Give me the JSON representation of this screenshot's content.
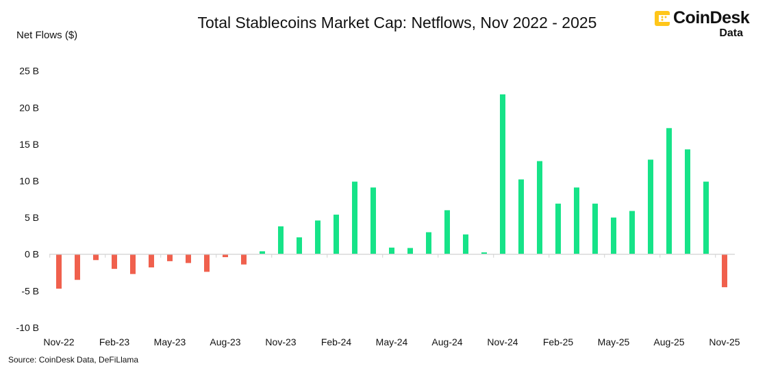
{
  "chart_data": {
    "type": "bar",
    "title": "Total Stablecoins Market Cap: Netflows, Nov 2022 - 2025",
    "ylabel": "Net Flows ($)",
    "xlabel": "",
    "ylim": [
      -10,
      25
    ],
    "yticks": [
      25,
      20,
      15,
      10,
      5,
      0,
      -5,
      -10
    ],
    "ytick_labels": [
      "25 B",
      "20 B",
      "15 B",
      "10 B",
      "5 B",
      "0 B",
      "-5 B",
      "-10 B"
    ],
    "unit": "B",
    "categories": [
      "Nov-22",
      "Dec-22",
      "Jan-23",
      "Feb-23",
      "Mar-23",
      "Apr-23",
      "May-23",
      "Jun-23",
      "Jul-23",
      "Aug-23",
      "Sep-23",
      "Oct-23",
      "Nov-23",
      "Dec-23",
      "Jan-24",
      "Feb-24",
      "Mar-24",
      "Apr-24",
      "May-24",
      "Jun-24",
      "Jul-24",
      "Aug-24",
      "Sep-24",
      "Oct-24",
      "Nov-24",
      "Dec-24",
      "Jan-25",
      "Feb-25",
      "Mar-25",
      "Apr-25",
      "May-25",
      "Jun-25",
      "Jul-25",
      "Aug-25",
      "Sep-25",
      "Oct-25",
      "Nov-25"
    ],
    "xtick_labels": [
      "Nov-22",
      "Feb-23",
      "May-23",
      "Aug-23",
      "Nov-23",
      "Feb-24",
      "May-24",
      "Aug-24",
      "Nov-24",
      "Feb-25",
      "May-25",
      "Aug-25",
      "Nov-25"
    ],
    "values": [
      -4.7,
      -3.5,
      -0.8,
      -2.0,
      -2.7,
      -1.8,
      -0.95,
      -1.2,
      -2.4,
      -0.4,
      -1.4,
      0.4,
      3.8,
      2.3,
      4.6,
      5.4,
      9.9,
      9.1,
      0.9,
      0.85,
      3.0,
      6.0,
      2.7,
      0.25,
      21.8,
      10.2,
      12.7,
      6.9,
      9.1,
      6.9,
      5.0,
      5.9,
      12.9,
      17.2,
      14.3,
      9.9,
      -4.5
    ],
    "grid": false,
    "colors": {
      "positive": "#16E388",
      "negative": "#F0604D",
      "axis": "#D9D9D9"
    }
  },
  "source": "Source: CoinDesk Data, DeFiLlama",
  "logo": {
    "brand": "CoinDesk",
    "sub": "Data",
    "color": "#FFC61A"
  }
}
